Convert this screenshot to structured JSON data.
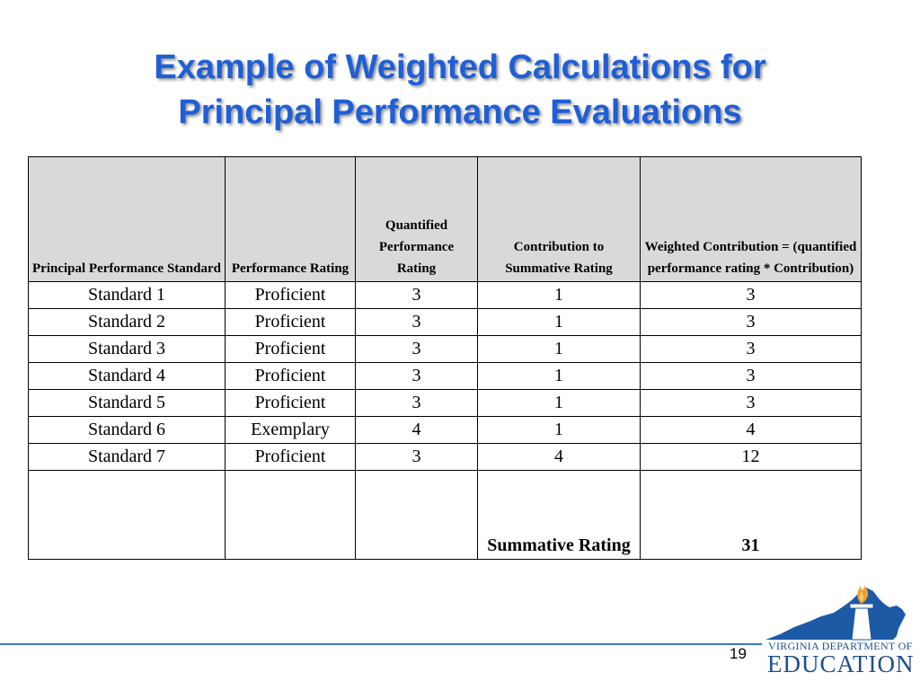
{
  "title": {
    "line1": "Example of Weighted Calculations for",
    "line2": "Principal Performance Evaluations"
  },
  "table": {
    "headers": [
      "Principal Performance Standard",
      "Performance Rating",
      "Quantified Performance Rating",
      "Contribution to Summative Rating",
      "Weighted Contribution = (quantified performance rating * Contribution)"
    ],
    "rows": [
      [
        "Standard 1",
        "Proficient",
        "3",
        "1",
        "3"
      ],
      [
        "Standard 2",
        "Proficient",
        "3",
        "1",
        "3"
      ],
      [
        "Standard 3",
        "Proficient",
        "3",
        "1",
        "3"
      ],
      [
        "Standard 4",
        "Proficient",
        "3",
        "1",
        "3"
      ],
      [
        "Standard 5",
        "Proficient",
        "3",
        "1",
        "3"
      ],
      [
        "Standard 6",
        "Exemplary",
        "4",
        "1",
        "4"
      ],
      [
        "Standard 7",
        "Proficient",
        "3",
        "4",
        "12"
      ]
    ],
    "summary": {
      "label": "Summative Rating",
      "value": "31"
    }
  },
  "footer": {
    "page_number": "19",
    "logo_dept": "VIRGINIA DEPARTMENT OF",
    "logo_edu": "EDUCATION"
  },
  "colors": {
    "title": "#1f5fd6",
    "header_bg": "#d9d9d9",
    "footer_rule": "#3a78c4",
    "logo_blue": "#1c4f8f",
    "flame": "#f0a030"
  }
}
